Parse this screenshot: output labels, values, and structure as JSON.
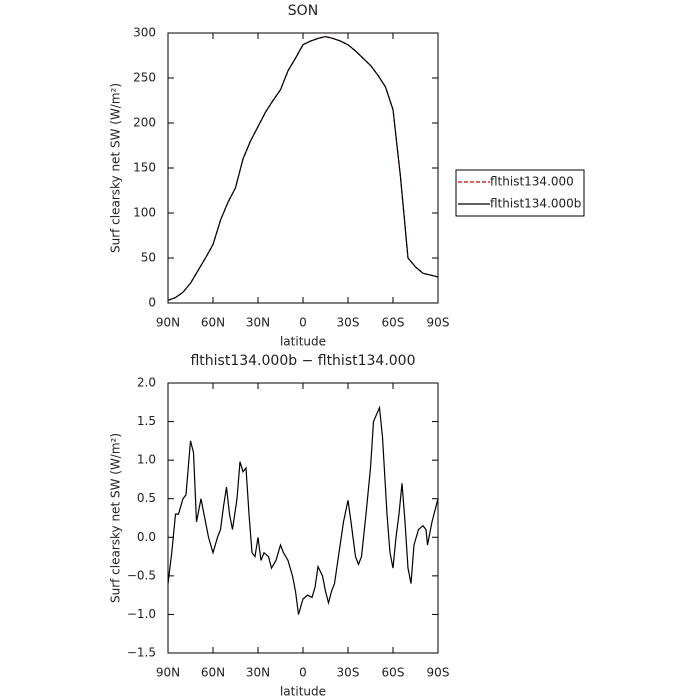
{
  "chart_data": [
    {
      "type": "line",
      "title": "SON",
      "xlabel": "latitude",
      "ylabel": "Surf clearsky net SW (W/m²)",
      "xlim": [
        90,
        -90
      ],
      "xticks": [
        {
          "value": 90,
          "label": "90N"
        },
        {
          "value": 60,
          "label": "60N"
        },
        {
          "value": 30,
          "label": "30N"
        },
        0,
        {
          "value": -30,
          "label": "30S"
        },
        {
          "value": -60,
          "label": "60S"
        },
        {
          "value": -90,
          "label": "90S"
        }
      ],
      "ylim": [
        0,
        300
      ],
      "yticks": [
        0,
        50,
        100,
        150,
        200,
        250,
        300
      ],
      "legend": "right",
      "x": [
        90,
        85,
        80,
        75,
        70,
        65,
        60,
        55,
        50,
        45,
        40,
        35,
        30,
        25,
        20,
        15,
        10,
        5,
        0,
        -5,
        -10,
        -15,
        -20,
        -25,
        -30,
        -35,
        -40,
        -45,
        -50,
        -55,
        -60,
        -65,
        -70,
        -75,
        -80,
        -85,
        -90
      ],
      "series": [
        {
          "name": "flthist134.000",
          "color": "#cc0000",
          "linestyle": "dashed",
          "values": [
            3,
            6,
            12,
            22,
            36,
            50,
            65,
            92,
            112,
            128,
            160,
            180,
            196,
            212,
            225,
            237,
            258,
            272,
            287,
            291,
            294,
            296,
            294,
            291,
            287,
            280,
            272,
            264,
            253,
            240,
            215,
            140,
            50,
            40,
            33,
            31,
            29
          ]
        },
        {
          "name": "flthist134.000b",
          "color": "#000000",
          "linestyle": "solid",
          "values": [
            3,
            6,
            12,
            22,
            36,
            50,
            65,
            92,
            112,
            128,
            160,
            180,
            196,
            212,
            225,
            237,
            258,
            272,
            287,
            291,
            294,
            296,
            294,
            291,
            287,
            280,
            272,
            264,
            253,
            240,
            215,
            140,
            50,
            40,
            33,
            31,
            29
          ]
        }
      ]
    },
    {
      "type": "line",
      "title": "flthist134.000b − flthist134.000",
      "xlabel": "latitude",
      "ylabel": "Surf clearsky net SW (W/m²)",
      "xlim": [
        90,
        -90
      ],
      "xticks": [
        {
          "value": 90,
          "label": "90N"
        },
        {
          "value": 60,
          "label": "60N"
        },
        {
          "value": 30,
          "label": "30N"
        },
        0,
        {
          "value": -30,
          "label": "30S"
        },
        {
          "value": -60,
          "label": "60S"
        },
        {
          "value": -90,
          "label": "90S"
        }
      ],
      "ylim": [
        -1.5,
        2.0
      ],
      "yticks": [
        {
          "value": -1.5,
          "label": "−1.5"
        },
        {
          "value": -1.0,
          "label": "−1.0"
        },
        {
          "value": -0.5,
          "label": "−0.5"
        },
        {
          "value": 0,
          "label": "0.0"
        },
        {
          "value": 0.5,
          "label": "0.5"
        },
        {
          "value": 1.0,
          "label": "1.0"
        },
        {
          "value": 1.5,
          "label": "1.5"
        },
        {
          "value": 2.0,
          "label": "2.0"
        }
      ],
      "x": [
        90,
        87.5,
        85,
        83,
        80,
        78,
        75,
        73,
        71,
        68,
        65,
        63,
        60,
        57,
        55,
        53,
        51,
        49,
        47,
        44,
        42,
        40,
        38,
        36,
        34,
        32,
        30,
        28,
        26,
        23,
        21,
        18,
        15,
        13,
        10,
        7,
        5,
        3,
        0,
        -3,
        -6,
        -8,
        -10,
        -13,
        -15,
        -17,
        -19,
        -21,
        -24,
        -27,
        -30,
        -32,
        -35,
        -37,
        -39,
        -42,
        -45,
        -47,
        -51,
        -53,
        -56,
        -58,
        -60,
        -62,
        -64,
        -66,
        -68,
        -70,
        -72,
        -74,
        -77,
        -80,
        -82,
        -83,
        -86,
        -90
      ],
      "series": [
        {
          "name": "flthist134.000b − flthist134.000",
          "color": "#000000",
          "linestyle": "solid",
          "values": [
            -0.6,
            -0.2,
            0.3,
            0.3,
            0.5,
            0.55,
            1.25,
            1.1,
            0.2,
            0.5,
            0.2,
            0.0,
            -0.2,
            0.0,
            0.1,
            0.4,
            0.65,
            0.3,
            0.1,
            0.5,
            0.98,
            0.85,
            0.9,
            0.3,
            -0.2,
            -0.25,
            0.0,
            -0.3,
            -0.2,
            -0.25,
            -0.4,
            -0.3,
            -0.1,
            -0.2,
            -0.3,
            -0.5,
            -0.7,
            -1.0,
            -0.8,
            -0.75,
            -0.78,
            -0.65,
            -0.38,
            -0.5,
            -0.7,
            -0.85,
            -0.7,
            -0.6,
            -0.2,
            0.2,
            0.48,
            0.2,
            -0.25,
            -0.35,
            -0.25,
            0.3,
            0.9,
            1.5,
            1.68,
            1.3,
            0.3,
            -0.2,
            -0.4,
            0.0,
            0.3,
            0.7,
            0.2,
            -0.4,
            -0.6,
            -0.1,
            0.1,
            0.15,
            0.1,
            -0.1,
            0.2,
            0.5
          ]
        }
      ]
    }
  ]
}
